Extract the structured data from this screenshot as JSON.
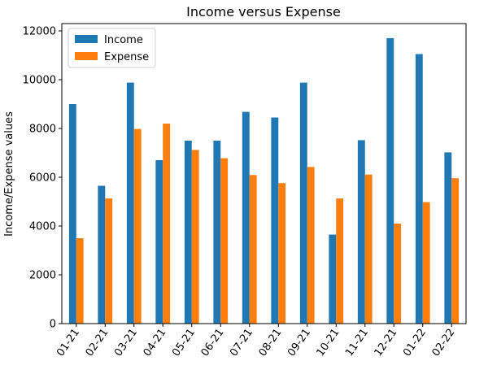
{
  "chart_data": {
    "type": "bar",
    "title": "Income versus Expense",
    "xlabel": "",
    "ylabel": "Income/Expense values",
    "categories": [
      "01-21",
      "02-21",
      "03-21",
      "04-21",
      "05-21",
      "06-21",
      "07-21",
      "08-21",
      "09-21",
      "10-21",
      "11-21",
      "12-21",
      "01-22",
      "02-22"
    ],
    "series": [
      {
        "name": "Income",
        "color": "#1f77b4",
        "values": [
          9000,
          5650,
          9880,
          6700,
          7500,
          7500,
          8680,
          8450,
          9880,
          3650,
          7520,
          11700,
          11050,
          7020
        ]
      },
      {
        "name": "Expense",
        "color": "#ff7f0e",
        "values": [
          3500,
          5130,
          7980,
          8200,
          7120,
          6780,
          6090,
          5760,
          6420,
          5130,
          6110,
          4100,
          4980,
          5960
        ]
      }
    ],
    "ylim": [
      0,
      12300
    ],
    "yticks": [
      0,
      2000,
      4000,
      6000,
      8000,
      10000,
      12000
    ],
    "legend": "top-left",
    "grid": false
  }
}
